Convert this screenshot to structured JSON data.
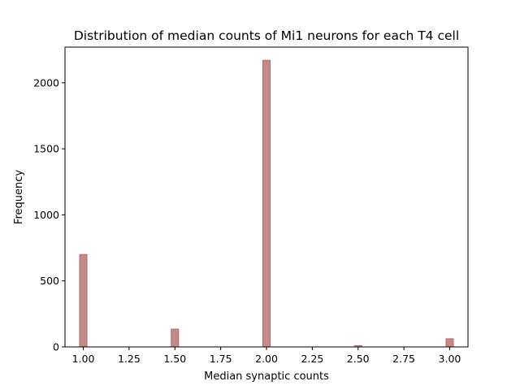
{
  "chart_data": {
    "type": "bar",
    "title": "Distribution of median counts of Mi1 neurons for each T4 cell",
    "xlabel": "Median synaptic counts",
    "ylabel": "Frequency",
    "xlim": [
      0.9,
      3.1
    ],
    "ylim": [
      0,
      2270
    ],
    "bin_width": 0.04,
    "bins": [
      {
        "x": 1.0,
        "value": 700
      },
      {
        "x": 1.5,
        "value": 135
      },
      {
        "x": 2.0,
        "value": 2170
      },
      {
        "x": 2.5,
        "value": 10
      },
      {
        "x": 3.0,
        "value": 62
      }
    ],
    "x_ticks": [
      1.0,
      1.25,
      1.5,
      1.75,
      2.0,
      2.25,
      2.5,
      2.75,
      3.0
    ],
    "x_tick_labels": [
      "1.00",
      "1.25",
      "1.50",
      "1.75",
      "2.00",
      "2.25",
      "2.50",
      "2.75",
      "3.00"
    ],
    "y_ticks": [
      0,
      500,
      1000,
      1500,
      2000
    ],
    "y_tick_labels": [
      "0",
      "500",
      "1000",
      "1500",
      "2000"
    ],
    "bar_fill": "#c48a8a",
    "bar_edge": "#b36b6b",
    "grid": false,
    "legend": "none"
  }
}
